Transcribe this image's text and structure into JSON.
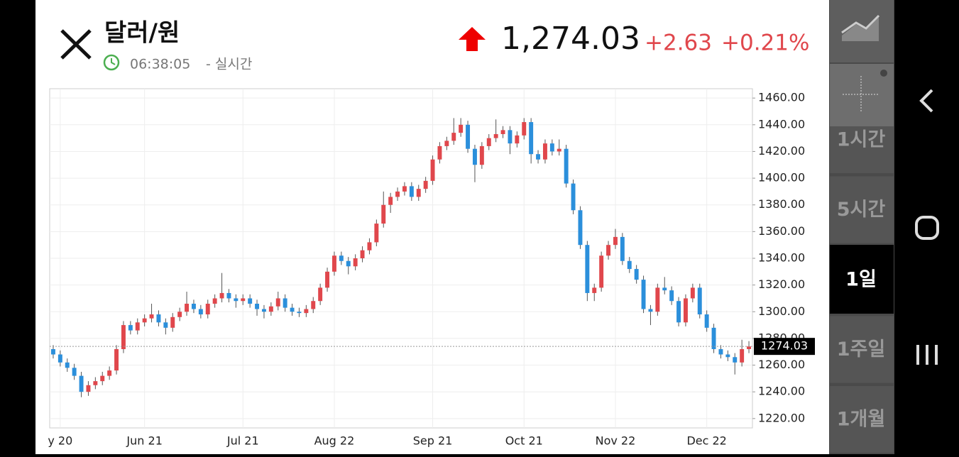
{
  "header": {
    "title": "달러/원",
    "time": "06:38:05",
    "time_suffix": "- 실시간",
    "price": "1,274.03",
    "change": "+2.63",
    "change_pct": "+0.21%"
  },
  "side_menu": [
    "1시간",
    "5시간",
    "1일",
    "1주일",
    "1개월"
  ],
  "chart_data": {
    "type": "candlestick",
    "categories": [
      null,
      "y 20",
      null,
      null,
      null,
      null,
      null,
      null,
      null,
      null,
      null,
      null,
      null,
      "Jun 21",
      null,
      null,
      null,
      null,
      null,
      null,
      null,
      null,
      null,
      null,
      null,
      null,
      null,
      "Jul 21",
      null,
      null,
      null,
      null,
      null,
      null,
      null,
      null,
      null,
      null,
      null,
      null,
      "Aug 22",
      null,
      null,
      null,
      null,
      null,
      null,
      null,
      null,
      null,
      null,
      null,
      null,
      null,
      "Sep 21",
      null,
      null,
      null,
      null,
      null,
      null,
      null,
      null,
      null,
      null,
      null,
      null,
      "Oct 21",
      null,
      null,
      null,
      null,
      null,
      null,
      null,
      null,
      null,
      null,
      null,
      null,
      "Nov 22",
      null,
      null,
      null,
      null,
      null,
      null,
      null,
      null,
      null,
      null,
      null,
      null,
      "Dec 22",
      null,
      null,
      null,
      null,
      null,
      null
    ],
    "open": [
      1272,
      1268,
      1262,
      1258,
      1252,
      1240,
      1245,
      1248,
      1252,
      1256,
      1272,
      1290,
      1286,
      1292,
      1295,
      1298,
      1292,
      1288,
      1296,
      1300,
      1306,
      1302,
      1298,
      1306,
      1310,
      1314,
      1310,
      1308,
      1310,
      1306,
      1302,
      1300,
      1304,
      1310,
      1303,
      1300,
      1299,
      1302,
      1308,
      1318,
      1330,
      1342,
      1338,
      1334,
      1340,
      1346,
      1352,
      1366,
      1380,
      1386,
      1390,
      1394,
      1386,
      1392,
      1398,
      1414,
      1424,
      1428,
      1434,
      1440,
      1422,
      1410,
      1424,
      1430,
      1433,
      1436,
      1426,
      1432,
      1442,
      1418,
      1414,
      1426,
      1420,
      1422,
      1396,
      1376,
      1350,
      1314,
      1318,
      1342,
      1350,
      1356,
      1338,
      1332,
      1324,
      1302,
      1300,
      1318,
      1316,
      1308,
      1292,
      1310,
      1318,
      1298,
      1288,
      1272,
      1268,
      1266,
      1262,
      1272
    ],
    "high": [
      1275,
      1271,
      1265,
      1261,
      1255,
      1248,
      1251,
      1255,
      1259,
      1275,
      1293,
      1293,
      1295,
      1298,
      1306,
      1301,
      1295,
      1299,
      1303,
      1315,
      1309,
      1305,
      1309,
      1313,
      1329,
      1317,
      1313,
      1313,
      1313,
      1309,
      1305,
      1307,
      1315,
      1313,
      1306,
      1303,
      1305,
      1311,
      1321,
      1333,
      1345,
      1345,
      1341,
      1343,
      1349,
      1355,
      1369,
      1390,
      1389,
      1393,
      1397,
      1397,
      1395,
      1401,
      1417,
      1427,
      1431,
      1445,
      1445,
      1443,
      1425,
      1427,
      1433,
      1444,
      1439,
      1439,
      1435,
      1445,
      1445,
      1421,
      1429,
      1429,
      1429,
      1425,
      1399,
      1379,
      1353,
      1321,
      1345,
      1353,
      1362,
      1359,
      1341,
      1335,
      1327,
      1305,
      1321,
      1326,
      1319,
      1311,
      1313,
      1321,
      1321,
      1301,
      1291,
      1275,
      1271,
      1269,
      1279,
      1278
    ],
    "low": [
      1265,
      1259,
      1255,
      1249,
      1236,
      1237,
      1242,
      1245,
      1249,
      1253,
      1269,
      1283,
      1283,
      1289,
      1292,
      1289,
      1283,
      1285,
      1293,
      1297,
      1299,
      1295,
      1295,
      1303,
      1307,
      1307,
      1303,
      1305,
      1303,
      1297,
      1295,
      1297,
      1301,
      1300,
      1297,
      1296,
      1296,
      1299,
      1305,
      1315,
      1327,
      1335,
      1328,
      1331,
      1337,
      1343,
      1349,
      1363,
      1374,
      1383,
      1387,
      1383,
      1383,
      1389,
      1395,
      1411,
      1421,
      1425,
      1431,
      1419,
      1397,
      1407,
      1421,
      1427,
      1430,
      1418,
      1423,
      1429,
      1411,
      1411,
      1411,
      1417,
      1417,
      1393,
      1373,
      1347,
      1308,
      1308,
      1315,
      1339,
      1347,
      1335,
      1329,
      1321,
      1299,
      1290,
      1297,
      1313,
      1305,
      1289,
      1289,
      1307,
      1295,
      1285,
      1269,
      1265,
      1263,
      1253,
      1259,
      1269
    ],
    "close": [
      1268,
      1262,
      1258,
      1252,
      1240,
      1245,
      1248,
      1252,
      1256,
      1272,
      1290,
      1286,
      1292,
      1295,
      1298,
      1292,
      1288,
      1296,
      1300,
      1306,
      1302,
      1298,
      1306,
      1310,
      1314,
      1310,
      1308,
      1310,
      1306,
      1302,
      1300,
      1304,
      1310,
      1303,
      1300,
      1299,
      1302,
      1308,
      1318,
      1330,
      1342,
      1338,
      1334,
      1340,
      1346,
      1352,
      1366,
      1380,
      1386,
      1390,
      1394,
      1386,
      1392,
      1398,
      1414,
      1424,
      1428,
      1434,
      1440,
      1422,
      1410,
      1424,
      1430,
      1433,
      1436,
      1426,
      1432,
      1442,
      1418,
      1414,
      1426,
      1420,
      1422,
      1396,
      1376,
      1350,
      1314,
      1318,
      1342,
      1350,
      1356,
      1338,
      1332,
      1324,
      1302,
      1300,
      1318,
      1316,
      1308,
      1292,
      1310,
      1318,
      1298,
      1288,
      1272,
      1268,
      1266,
      1262,
      1272,
      1274.03
    ],
    "up_color": "#e0474c",
    "down_color": "#2b8fdb",
    "ylim": [
      1213,
      1467
    ],
    "yticks": [
      {
        "value": 1220,
        "label": "1220.00"
      },
      {
        "value": 1240,
        "label": "1240.00"
      },
      {
        "value": 1260,
        "label": "1260.00"
      },
      {
        "value": 1280,
        "label": "1280.00"
      },
      {
        "value": 1300,
        "label": "1300.00"
      },
      {
        "value": 1320,
        "label": "1320.00"
      },
      {
        "value": 1340,
        "label": "1340.00"
      },
      {
        "value": 1360,
        "label": "1360.00"
      },
      {
        "value": 1380,
        "label": "1380.00"
      },
      {
        "value": 1400,
        "label": "1400.00"
      },
      {
        "value": 1420,
        "label": "1420.00"
      },
      {
        "value": 1440,
        "label": "1440.00"
      },
      {
        "value": 1460,
        "label": "1460.00"
      }
    ],
    "grid": true
  }
}
